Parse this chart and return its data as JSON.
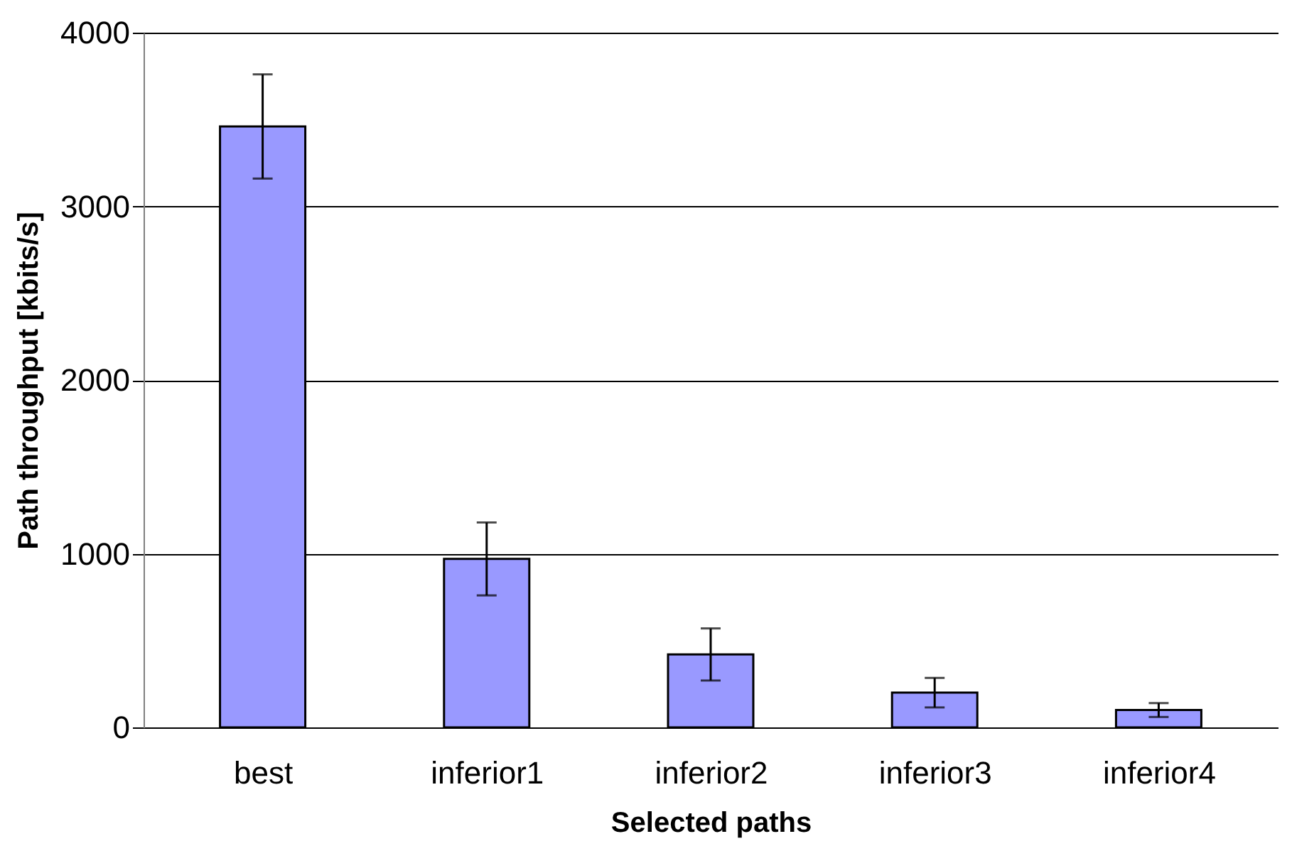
{
  "chart_data": {
    "type": "bar",
    "xlabel": "Selected paths",
    "ylabel": "Path throughput [kbits/s]",
    "categories": [
      "best",
      "inferior1",
      "inferior2",
      "inferior3",
      "inferior4"
    ],
    "values": [
      3460,
      970,
      420,
      200,
      100
    ],
    "errors": [
      300,
      210,
      150,
      85,
      40
    ],
    "color": "#9999ff",
    "ylim": [
      0,
      4000
    ],
    "yticks": [
      0,
      1000,
      2000,
      3000,
      4000
    ],
    "grid": "y"
  }
}
